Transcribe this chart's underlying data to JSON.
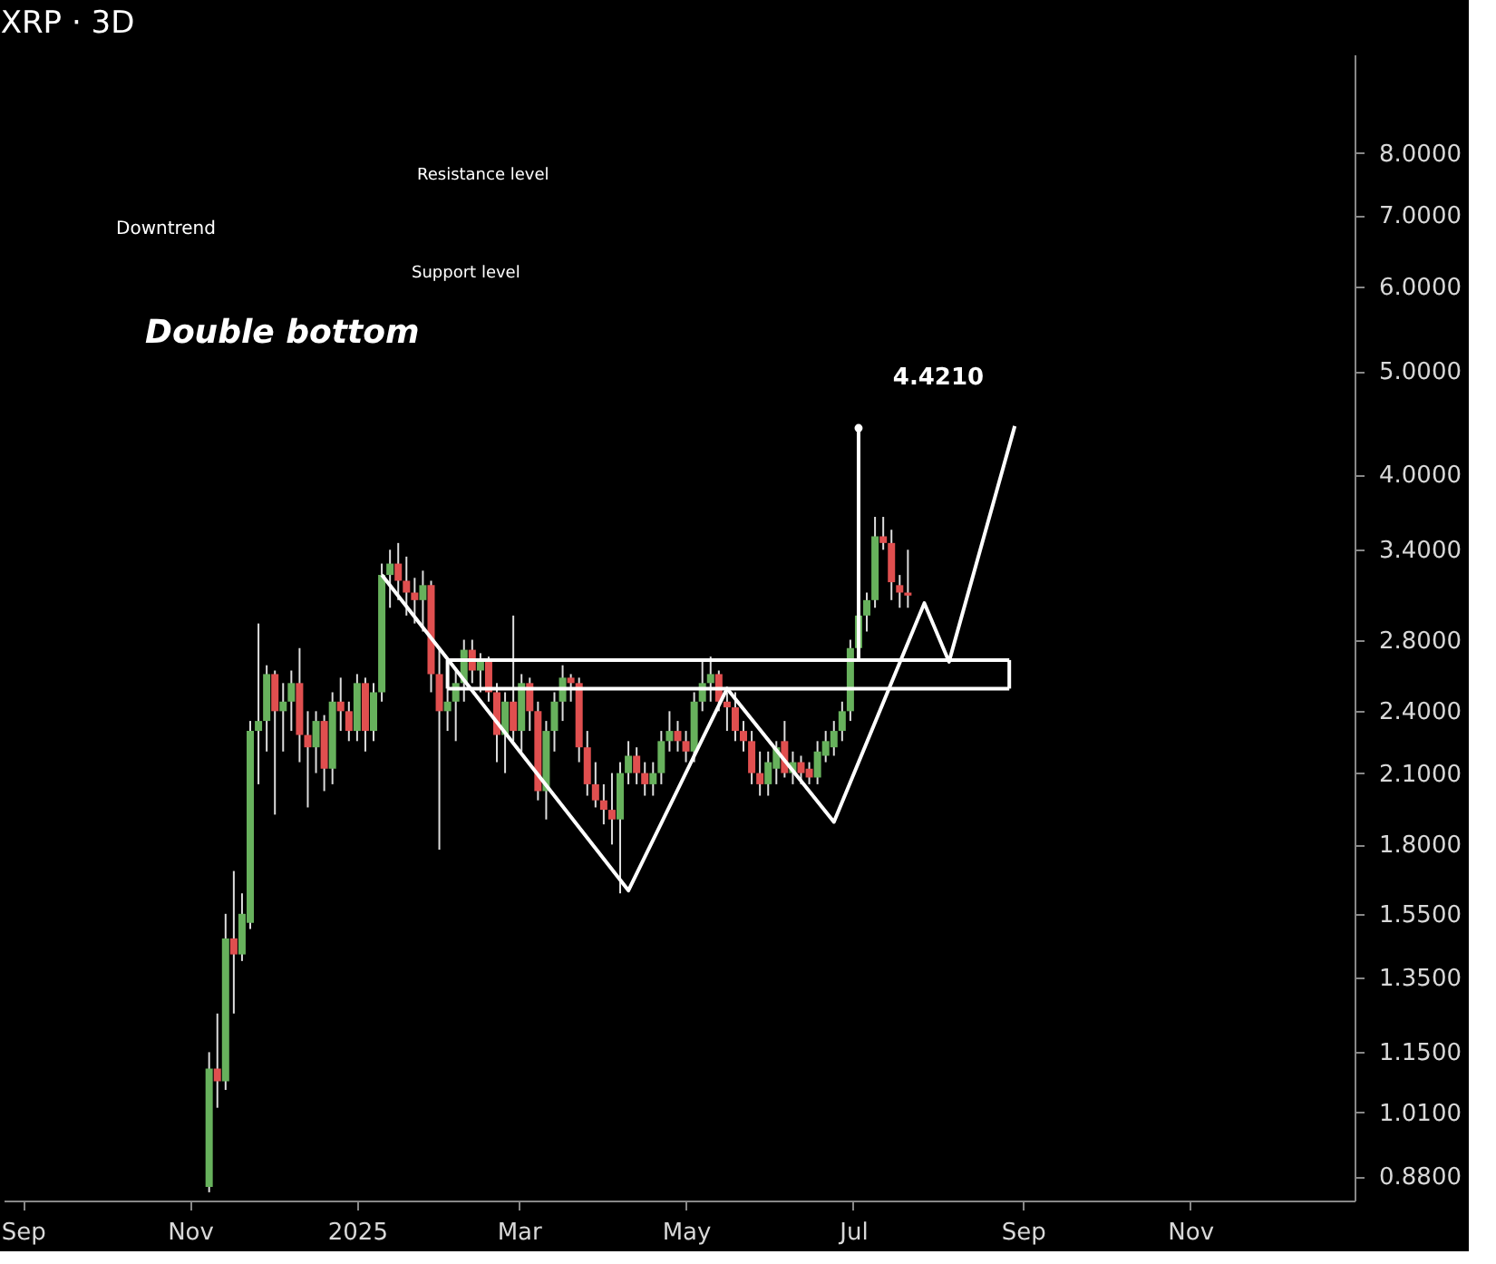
{
  "chart_data": {
    "type": "candlestick",
    "title": "XRP · 3D",
    "x": [
      "2024-11-08",
      "2024-11-11",
      "2024-11-14",
      "2024-11-17",
      "2024-11-20",
      "2024-11-23",
      "2024-11-26",
      "2024-11-29",
      "2024-12-02",
      "2024-12-05",
      "2024-12-08",
      "2024-12-11",
      "2024-12-14",
      "2024-12-17",
      "2024-12-20",
      "2024-12-23",
      "2024-12-26",
      "2024-12-29",
      "2025-01-01",
      "2025-01-04",
      "2025-01-07",
      "2025-01-10",
      "2025-01-13",
      "2025-01-16",
      "2025-01-19",
      "2025-01-22",
      "2025-01-25",
      "2025-01-28",
      "2025-01-31",
      "2025-02-03",
      "2025-02-06",
      "2025-02-09",
      "2025-02-12",
      "2025-02-15",
      "2025-02-18",
      "2025-02-21",
      "2025-02-24",
      "2025-02-27",
      "2025-03-02",
      "2025-03-05",
      "2025-03-08",
      "2025-03-11",
      "2025-03-14",
      "2025-03-17",
      "2025-03-20",
      "2025-03-23",
      "2025-03-26",
      "2025-03-29",
      "2025-04-01",
      "2025-04-04",
      "2025-04-07",
      "2025-04-10",
      "2025-04-13",
      "2025-04-16",
      "2025-04-19",
      "2025-04-22",
      "2025-04-25",
      "2025-04-28",
      "2025-05-01",
      "2025-05-04",
      "2025-05-07",
      "2025-05-10",
      "2025-05-13",
      "2025-05-16",
      "2025-05-19",
      "2025-05-22",
      "2025-05-25",
      "2025-05-28",
      "2025-05-31",
      "2025-06-03",
      "2025-06-06",
      "2025-06-09",
      "2025-06-12",
      "2025-06-15",
      "2025-06-18",
      "2025-06-21",
      "2025-06-24",
      "2025-06-27",
      "2025-06-30",
      "2025-07-03",
      "2025-07-06",
      "2025-07-09",
      "2025-07-12",
      "2025-07-15",
      "2025-07-18",
      "2025-07-21"
    ],
    "ohlc": [
      [
        0.86,
        1.15,
        0.85,
        1.11
      ],
      [
        1.11,
        1.25,
        1.02,
        1.08
      ],
      [
        1.08,
        1.55,
        1.06,
        1.47
      ],
      [
        1.47,
        1.7,
        1.25,
        1.42
      ],
      [
        1.42,
        1.62,
        1.4,
        1.55
      ],
      [
        1.52,
        2.35,
        1.5,
        2.3
      ],
      [
        2.3,
        2.9,
        2.05,
        2.35
      ],
      [
        2.35,
        2.65,
        2.2,
        2.6
      ],
      [
        2.6,
        2.62,
        1.92,
        2.4
      ],
      [
        2.4,
        2.55,
        2.2,
        2.45
      ],
      [
        2.45,
        2.62,
        2.3,
        2.55
      ],
      [
        2.55,
        2.75,
        2.15,
        2.28
      ],
      [
        2.28,
        2.4,
        1.95,
        2.22
      ],
      [
        2.22,
        2.4,
        2.1,
        2.35
      ],
      [
        2.35,
        2.38,
        2.02,
        2.12
      ],
      [
        2.12,
        2.5,
        2.05,
        2.45
      ],
      [
        2.45,
        2.58,
        2.3,
        2.4
      ],
      [
        2.4,
        2.45,
        2.25,
        2.3
      ],
      [
        2.3,
        2.6,
        2.25,
        2.55
      ],
      [
        2.55,
        2.58,
        2.2,
        2.3
      ],
      [
        2.3,
        2.55,
        2.25,
        2.5
      ],
      [
        2.5,
        3.3,
        2.45,
        3.22
      ],
      [
        3.22,
        3.4,
        3.0,
        3.3
      ],
      [
        3.3,
        3.45,
        3.05,
        3.18
      ],
      [
        3.18,
        3.35,
        2.95,
        3.1
      ],
      [
        3.1,
        3.2,
        2.9,
        3.05
      ],
      [
        3.05,
        3.25,
        2.85,
        3.15
      ],
      [
        3.15,
        3.18,
        2.5,
        2.6
      ],
      [
        2.6,
        2.75,
        1.78,
        2.4
      ],
      [
        2.4,
        2.55,
        2.3,
        2.45
      ],
      [
        2.45,
        2.62,
        2.25,
        2.55
      ],
      [
        2.55,
        2.8,
        2.45,
        2.74
      ],
      [
        2.74,
        2.8,
        2.55,
        2.62
      ],
      [
        2.62,
        2.72,
        2.5,
        2.68
      ],
      [
        2.68,
        2.7,
        2.45,
        2.5
      ],
      [
        2.5,
        2.55,
        2.15,
        2.28
      ],
      [
        2.28,
        2.5,
        2.1,
        2.45
      ],
      [
        2.45,
        2.95,
        2.25,
        2.3
      ],
      [
        2.3,
        2.6,
        2.2,
        2.55
      ],
      [
        2.55,
        2.58,
        2.3,
        2.4
      ],
      [
        2.4,
        2.45,
        1.98,
        2.02
      ],
      [
        2.02,
        2.35,
        1.9,
        2.3
      ],
      [
        2.3,
        2.5,
        2.2,
        2.45
      ],
      [
        2.45,
        2.65,
        2.35,
        2.58
      ],
      [
        2.58,
        2.6,
        2.45,
        2.55
      ],
      [
        2.55,
        2.58,
        2.15,
        2.22
      ],
      [
        2.22,
        2.3,
        2.0,
        2.05
      ],
      [
        2.05,
        2.15,
        1.95,
        1.98
      ],
      [
        1.98,
        2.05,
        1.88,
        1.94
      ],
      [
        1.94,
        2.1,
        1.8,
        1.9
      ],
      [
        1.9,
        2.15,
        1.62,
        2.1
      ],
      [
        2.1,
        2.25,
        2.05,
        2.18
      ],
      [
        2.18,
        2.22,
        2.05,
        2.1
      ],
      [
        2.1,
        2.15,
        2.0,
        2.05
      ],
      [
        2.05,
        2.15,
        2.0,
        2.1
      ],
      [
        2.1,
        2.3,
        2.05,
        2.25
      ],
      [
        2.25,
        2.4,
        2.2,
        2.3
      ],
      [
        2.3,
        2.35,
        2.2,
        2.25
      ],
      [
        2.25,
        2.3,
        2.15,
        2.2
      ],
      [
        2.2,
        2.5,
        2.15,
        2.45
      ],
      [
        2.45,
        2.68,
        2.4,
        2.55
      ],
      [
        2.55,
        2.7,
        2.45,
        2.6
      ],
      [
        2.6,
        2.62,
        2.4,
        2.45
      ],
      [
        2.45,
        2.5,
        2.3,
        2.42
      ],
      [
        2.42,
        2.5,
        2.25,
        2.3
      ],
      [
        2.3,
        2.35,
        2.2,
        2.25
      ],
      [
        2.25,
        2.3,
        2.05,
        2.1
      ],
      [
        2.1,
        2.2,
        2.0,
        2.05
      ],
      [
        2.05,
        2.2,
        2.0,
        2.15
      ],
      [
        2.12,
        2.25,
        2.05,
        2.22
      ],
      [
        2.25,
        2.35,
        2.08,
        2.1
      ],
      [
        2.1,
        2.2,
        2.05,
        2.15
      ],
      [
        2.15,
        2.18,
        2.05,
        2.1
      ],
      [
        2.12,
        2.15,
        2.05,
        2.08
      ],
      [
        2.08,
        2.25,
        2.05,
        2.2
      ],
      [
        2.18,
        2.3,
        2.15,
        2.25
      ],
      [
        2.22,
        2.35,
        2.18,
        2.3
      ],
      [
        2.3,
        2.45,
        2.25,
        2.4
      ],
      [
        2.4,
        2.8,
        2.35,
        2.75
      ],
      [
        2.75,
        3.0,
        2.7,
        2.95
      ],
      [
        2.95,
        3.1,
        2.85,
        3.05
      ],
      [
        3.05,
        3.65,
        3.0,
        3.5
      ],
      [
        3.5,
        3.65,
        3.4,
        3.45
      ],
      [
        3.45,
        3.55,
        3.05,
        3.17
      ],
      [
        3.15,
        3.22,
        3.0,
        3.1
      ],
      [
        3.1,
        3.4,
        3.0,
        3.08
      ]
    ],
    "colors": [
      "#67b15c",
      "#e04f4f",
      "#67b15c",
      "#e04f4f",
      "#67b15c",
      "#67b15c",
      "#67b15c",
      "#67b15c",
      "#e04f4f",
      "#67b15c",
      "#67b15c",
      "#e04f4f",
      "#e04f4f",
      "#67b15c",
      "#e04f4f",
      "#67b15c",
      "#e04f4f",
      "#e04f4f",
      "#67b15c",
      "#e04f4f",
      "#67b15c",
      "#67b15c",
      "#67b15c",
      "#e04f4f",
      "#e04f4f",
      "#e04f4f",
      "#67b15c",
      "#e04f4f",
      "#e04f4f",
      "#67b15c",
      "#67b15c",
      "#67b15c",
      "#e04f4f",
      "#67b15c",
      "#e04f4f",
      "#e04f4f",
      "#67b15c",
      "#e04f4f",
      "#67b15c",
      "#e04f4f",
      "#e04f4f",
      "#67b15c",
      "#67b15c",
      "#67b15c",
      "#e04f4f",
      "#e04f4f",
      "#e04f4f",
      "#e04f4f",
      "#e04f4f",
      "#e04f4f",
      "#67b15c",
      "#67b15c",
      "#e04f4f",
      "#e04f4f",
      "#67b15c",
      "#67b15c",
      "#67b15c",
      "#e04f4f",
      "#e04f4f",
      "#67b15c",
      "#67b15c",
      "#67b15c",
      "#e04f4f",
      "#e04f4f",
      "#e04f4f",
      "#e04f4f",
      "#e04f4f",
      "#e04f4f",
      "#67b15c",
      "#67b15c",
      "#e04f4f",
      "#67b15c",
      "#e04f4f",
      "#e04f4f",
      "#67b15c",
      "#67b15c",
      "#67b15c",
      "#67b15c",
      "#67b15c",
      "#67b15c",
      "#67b15c",
      "#67b15c",
      "#e04f4f",
      "#e04f4f",
      "#e04f4f",
      "#e04f4f"
    ],
    "series": [
      {
        "type": "line",
        "color": "#ffffff",
        "x": [
          "2025-01-10",
          "2025-04-10",
          "2025-05-16",
          "2025-06-24",
          "2025-07-27",
          "2025-08-05",
          "2025-08-29"
        ],
        "values": [
          3.22,
          1.63,
          2.52,
          1.89,
          3.03,
          2.67,
          4.44
        ]
      },
      {
        "type": "line",
        "color": "#ffffff",
        "x": [
          "2025-02-03",
          "2025-08-27"
        ],
        "values": [
          2.68,
          2.68
        ]
      },
      {
        "type": "line",
        "color": "#ffffff",
        "x": [
          "2025-02-03",
          "2025-08-27"
        ],
        "values": [
          2.52,
          2.52
        ]
      },
      {
        "type": "line",
        "color": "#ffffff",
        "x": [
          "2025-02-03",
          "2025-02-03"
        ],
        "values": [
          2.52,
          2.68
        ]
      },
      {
        "type": "line",
        "color": "#ffffff",
        "x": [
          "2025-08-27",
          "2025-08-27"
        ],
        "values": [
          2.52,
          2.68
        ]
      },
      {
        "type": "line",
        "color": "#ffffff",
        "x": [
          "2025-07-03",
          "2025-07-03"
        ],
        "values": [
          2.68,
          4.421
        ]
      }
    ],
    "annotations": [
      {
        "text": "4.4210",
        "x": "2025-07-03",
        "y": 4.421
      },
      "Downtrend",
      "Resistance level",
      "Support level",
      "Double bottom"
    ],
    "log": true,
    "ylim": [
      0.835,
      9.9
    ],
    "yticks": [
      {
        "value": 0.88,
        "label": "0.8800"
      },
      {
        "value": 1.01,
        "label": "1.0100"
      },
      {
        "value": 1.15,
        "label": "1.1500"
      },
      {
        "value": 1.35,
        "label": "1.3500"
      },
      {
        "value": 1.55,
        "label": "1.5500"
      },
      {
        "value": 1.8,
        "label": "1.8000"
      },
      {
        "value": 2.1,
        "label": "2.1000"
      },
      {
        "value": 2.4,
        "label": "2.4000"
      },
      {
        "value": 2.8,
        "label": "2.8000"
      },
      {
        "value": 3.4,
        "label": "3.4000"
      },
      {
        "value": 4,
        "label": "4.0000"
      },
      {
        "value": 5,
        "label": "5.0000"
      },
      {
        "value": 6,
        "label": "6.0000"
      },
      {
        "value": 7,
        "label": "7.0000"
      },
      {
        "value": 8,
        "label": "8.0000"
      }
    ],
    "xlim": [
      "2024-08-25",
      "2025-12-31"
    ],
    "xticks": [
      {
        "value": "2024-09-01",
        "label": "Sep"
      },
      {
        "value": "2024-11-01",
        "label": "Nov"
      },
      {
        "value": "2025-01-01",
        "label": "2025"
      },
      {
        "value": "2025-03-01",
        "label": "Mar"
      },
      {
        "value": "2025-05-01",
        "label": "May"
      },
      {
        "value": "2025-07-01",
        "label": "Jul"
      },
      {
        "value": "2025-09-01",
        "label": "Sep"
      },
      {
        "value": "2025-11-01",
        "label": "Nov"
      }
    ]
  }
}
